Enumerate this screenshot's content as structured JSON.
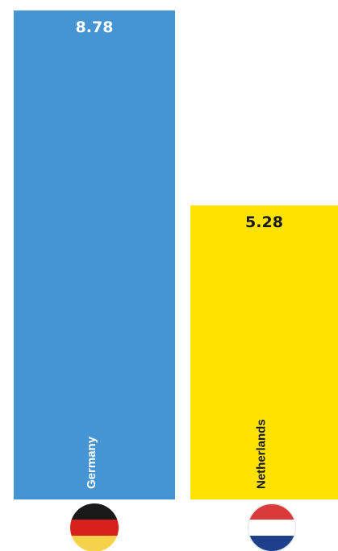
{
  "chart_data": {
    "type": "bar",
    "title": "",
    "xlabel": "",
    "ylabel": "",
    "ylim": [
      0,
      8.78
    ],
    "grid": false,
    "legend": "none",
    "categories": [
      "Germany",
      "Netherlands"
    ],
    "values": [
      8.78,
      5.28
    ],
    "value_labels": [
      "8.78",
      "5.28"
    ],
    "bar_colors": [
      "#4594d3",
      "#ffe200"
    ],
    "value_label_colors": [
      "#ffffff",
      "#1a1a1a"
    ],
    "category_label_colors": [
      "#ffffff",
      "#1a1a1a"
    ],
    "flags": [
      "germany-flag-icon",
      "netherlands-flag-icon"
    ]
  }
}
